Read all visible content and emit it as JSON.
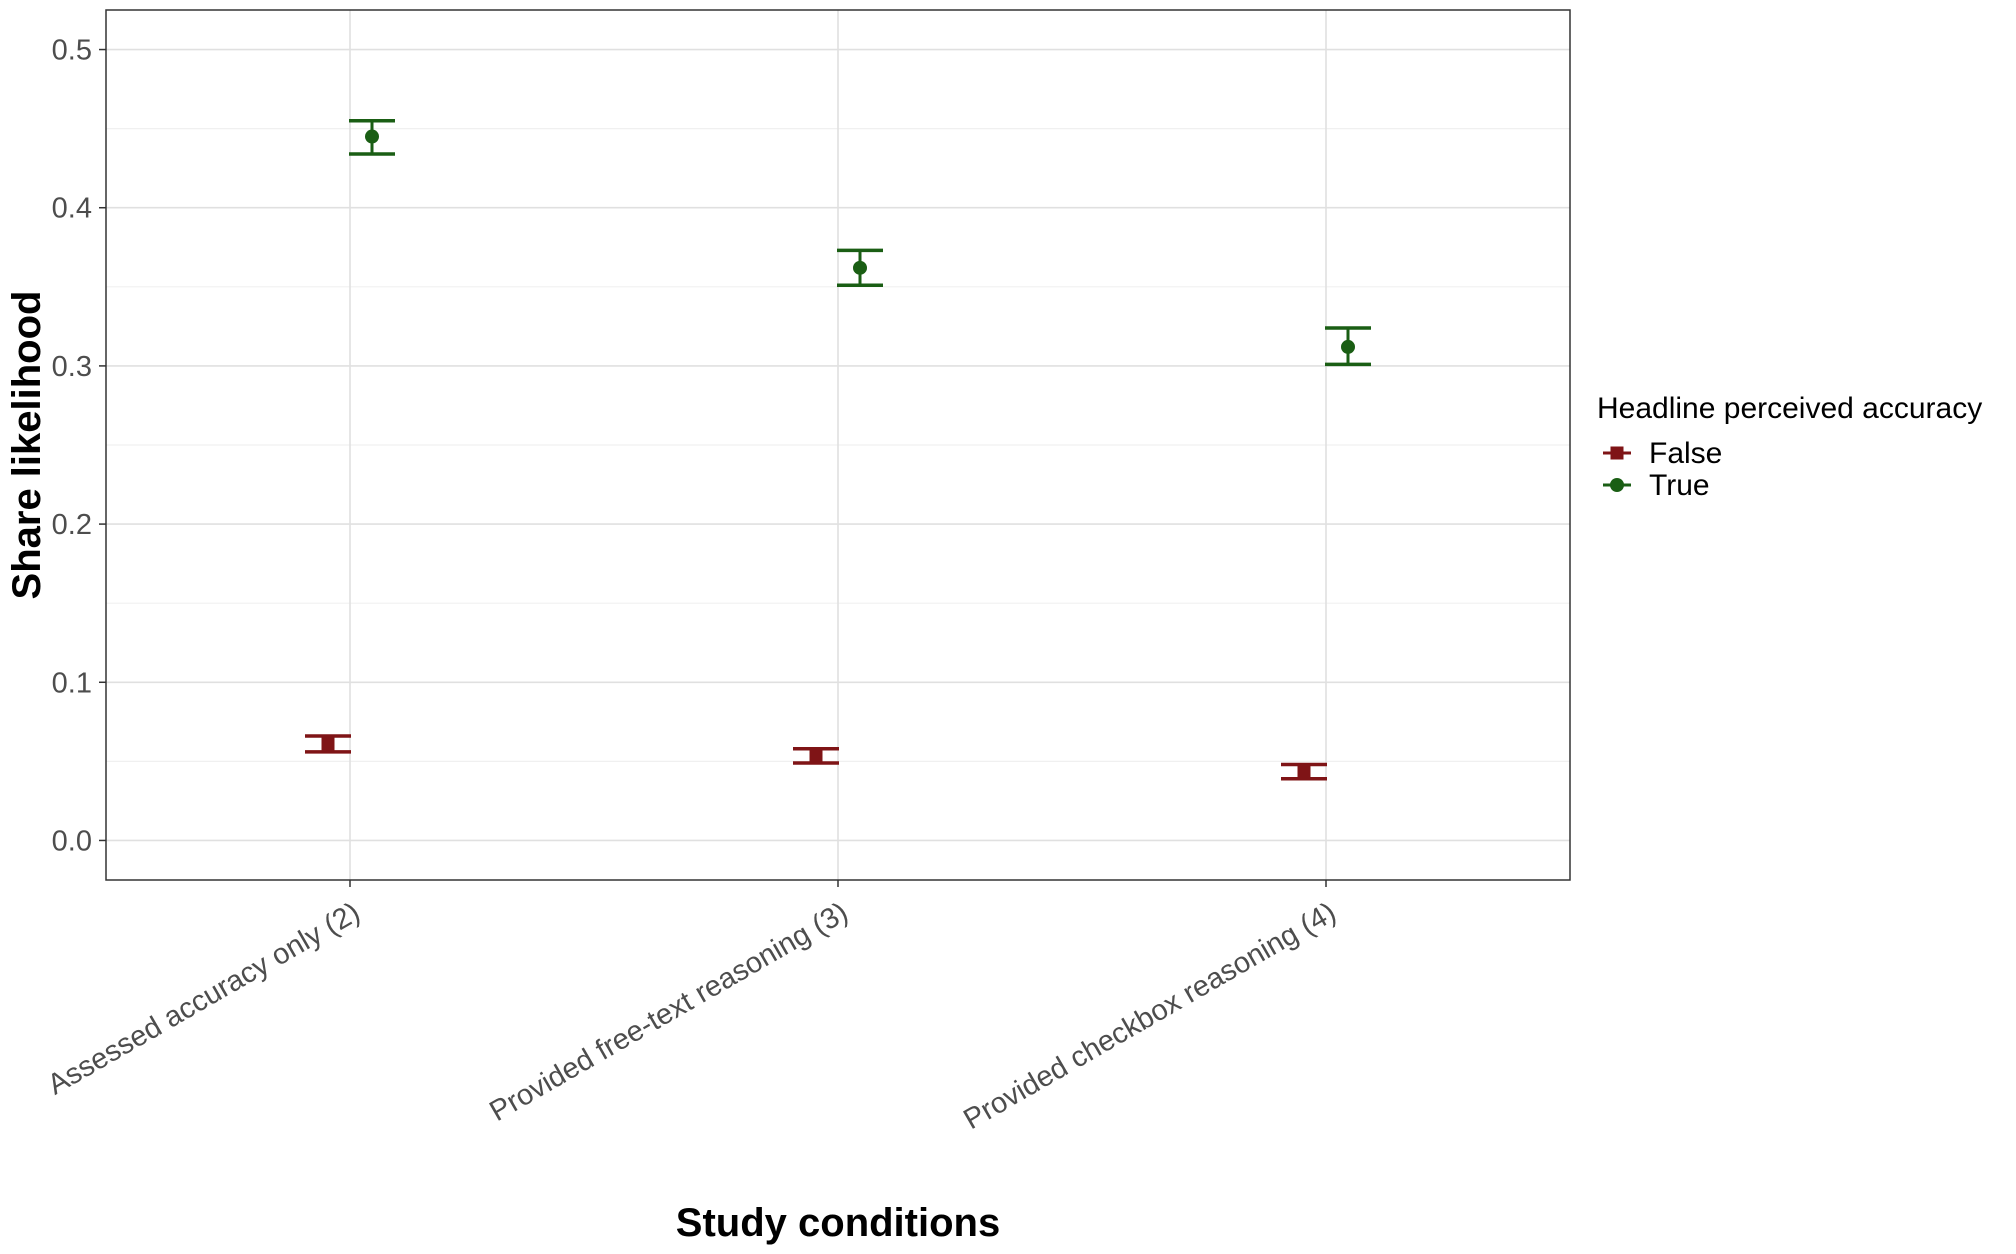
{
  "chart_data": {
    "type": "scatter",
    "xlabel": "Study conditions",
    "ylabel": "Share likelihood",
    "categories": [
      "Assessed accuracy only (2)",
      "Provided free-text reasoning (3)",
      "Provided checkbox reasoning (4)"
    ],
    "ylim": [
      -0.025,
      0.525
    ],
    "yticks": [
      "0.0",
      "0.1",
      "0.2",
      "0.3",
      "0.4",
      "0.5"
    ],
    "grid": true,
    "legend": {
      "title": "Headline perceived accuracy",
      "position": "right"
    },
    "series": [
      {
        "name": "False",
        "color": "#7f1416",
        "marker": "square",
        "values": [
          0.061,
          0.054,
          0.043
        ],
        "lower": [
          0.056,
          0.049,
          0.039
        ],
        "upper": [
          0.066,
          0.058,
          0.048
        ]
      },
      {
        "name": "True",
        "color": "#1a5e14",
        "marker": "circle",
        "values": [
          0.445,
          0.362,
          0.312
        ],
        "lower": [
          0.434,
          0.351,
          0.301
        ],
        "upper": [
          0.455,
          0.373,
          0.324
        ]
      }
    ]
  }
}
